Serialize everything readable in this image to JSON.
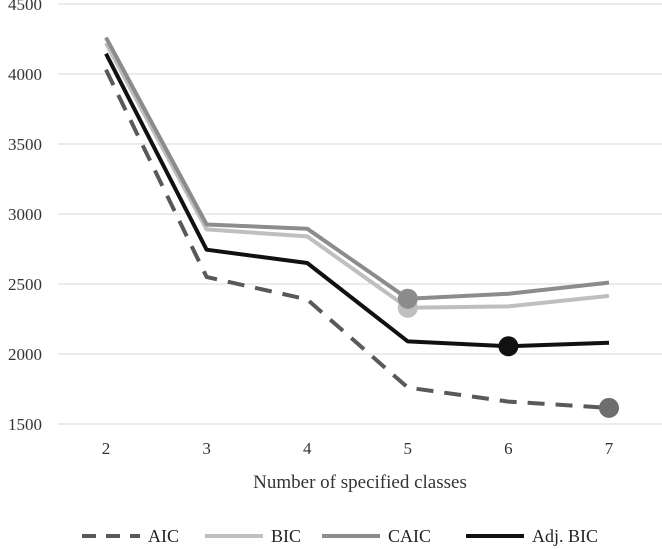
{
  "chart_data": {
    "type": "line",
    "xlabel": "Number of specified classes",
    "ylabel": "",
    "x": [
      2,
      3,
      4,
      5,
      6,
      7
    ],
    "ylim": [
      1500,
      4500
    ],
    "yticks": [
      1500,
      2000,
      2500,
      3000,
      3500,
      4000,
      4500
    ],
    "grid": "horizontal",
    "legend_position": "bottom",
    "series": [
      {
        "name": "AIC",
        "values": [
          4030,
          2550,
          2390,
          1760,
          1660,
          1615
        ],
        "color": "#595959",
        "dash": "dashed",
        "marker_at": 7
      },
      {
        "name": "BIC",
        "values": [
          4220,
          2890,
          2840,
          2330,
          2340,
          2415
        ],
        "color": "#bfbfbf",
        "dash": "solid",
        "marker_at": 5
      },
      {
        "name": "CAIC",
        "values": [
          4260,
          2925,
          2895,
          2395,
          2430,
          2510
        ],
        "color": "#8c8c8c",
        "dash": "solid",
        "marker_at": 5
      },
      {
        "name": "Adj. BIC",
        "values": [
          4145,
          2745,
          2650,
          2090,
          2055,
          2080
        ],
        "color": "#111111",
        "dash": "solid",
        "marker_at": 6
      }
    ]
  }
}
